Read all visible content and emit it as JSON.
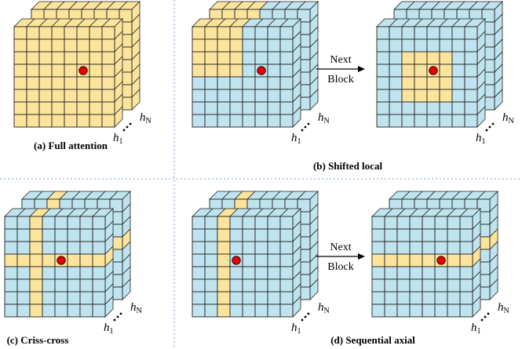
{
  "colors": {
    "yellow": "#fde49c",
    "blue": "#bfe4ef",
    "grid": "#222222",
    "dot": "#e60000",
    "divider": "#7d9fcf"
  },
  "panels": {
    "a": {
      "caption": "(a) Full attention",
      "pattern": "full"
    },
    "b": {
      "caption": "(b) Shifted local",
      "pattern": "local",
      "arrow_line1": "Next",
      "arrow_line2": "Block"
    },
    "c": {
      "caption": "(c) Criss-cross",
      "pattern": "criss"
    },
    "d": {
      "caption": "(d) Sequential axial",
      "pattern": "axial",
      "arrow_line1": "Next",
      "arrow_line2": "Block"
    }
  },
  "heads": {
    "h": "h",
    "first": "1",
    "last": "N"
  },
  "grid_cells": 8
}
